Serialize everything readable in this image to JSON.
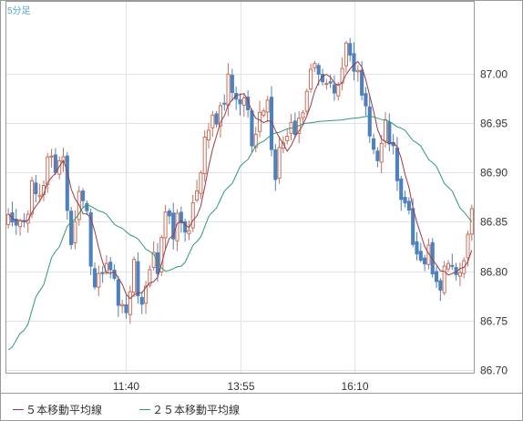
{
  "chart_data": {
    "type": "candlestick",
    "interval_label": "5分足",
    "y_ticks": [
      86.7,
      86.75,
      86.8,
      86.85,
      86.9,
      86.95,
      87.0
    ],
    "ylim": [
      86.697,
      87.073
    ],
    "x_ticks": [
      {
        "index": 30,
        "label": "11:40"
      },
      {
        "index": 59,
        "label": "13:55"
      },
      {
        "index": 88,
        "label": "16:10"
      }
    ],
    "x_count": 119,
    "colors": {
      "up": "#c8705c",
      "down": "#4e81bd",
      "ma5": "#9c3a4a",
      "ma25": "#2e9a73"
    },
    "legend": [
      {
        "label": "５本移動平均線",
        "color": "#9c3a4a"
      },
      {
        "label": "２５本移動平均線",
        "color": "#2e9a73"
      }
    ],
    "anchors": [
      [
        0,
        86.85
      ],
      [
        2,
        86.86
      ],
      [
        4,
        86.85
      ],
      [
        6,
        86.88
      ],
      [
        8,
        86.88
      ],
      [
        10,
        86.92
      ],
      [
        12,
        86.9
      ],
      [
        14,
        86.91
      ],
      [
        16,
        86.84
      ],
      [
        18,
        86.87
      ],
      [
        20,
        86.85
      ],
      [
        22,
        86.78
      ],
      [
        24,
        86.81
      ],
      [
        26,
        86.79
      ],
      [
        28,
        86.77
      ],
      [
        30,
        86.75
      ],
      [
        32,
        86.8
      ],
      [
        34,
        86.77
      ],
      [
        36,
        86.8
      ],
      [
        38,
        86.81
      ],
      [
        40,
        86.86
      ],
      [
        42,
        86.84
      ],
      [
        44,
        86.85
      ],
      [
        46,
        86.84
      ],
      [
        48,
        86.88
      ],
      [
        50,
        86.93
      ],
      [
        52,
        86.95
      ],
      [
        54,
        86.96
      ],
      [
        56,
        86.99
      ],
      [
        58,
        86.97
      ],
      [
        60,
        86.98
      ],
      [
        62,
        86.94
      ],
      [
        64,
        86.95
      ],
      [
        66,
        86.96
      ],
      [
        68,
        86.9
      ],
      [
        70,
        86.93
      ],
      [
        72,
        86.95
      ],
      [
        74,
        86.95
      ],
      [
        76,
        86.98
      ],
      [
        78,
        87.01
      ],
      [
        80,
        86.98
      ],
      [
        82,
        86.99
      ],
      [
        84,
        86.98
      ],
      [
        86,
        87.03
      ],
      [
        88,
        87.0
      ],
      [
        90,
        86.98
      ],
      [
        92,
        86.93
      ],
      [
        94,
        86.92
      ],
      [
        96,
        86.95
      ],
      [
        98,
        86.93
      ],
      [
        100,
        86.88
      ],
      [
        102,
        86.85
      ],
      [
        104,
        86.83
      ],
      [
        106,
        86.82
      ],
      [
        108,
        86.81
      ],
      [
        110,
        86.79
      ],
      [
        112,
        86.8
      ],
      [
        114,
        86.79
      ],
      [
        116,
        86.82
      ],
      [
        118,
        86.85
      ]
    ],
    "ma25_anchors": [
      [
        0,
        86.72
      ],
      [
        4,
        86.74
      ],
      [
        8,
        86.78
      ],
      [
        12,
        86.82
      ],
      [
        16,
        86.85
      ],
      [
        20,
        86.867
      ],
      [
        24,
        86.86
      ],
      [
        28,
        86.845
      ],
      [
        32,
        86.835
      ],
      [
        36,
        86.82
      ],
      [
        40,
        86.8
      ],
      [
        44,
        86.805
      ],
      [
        48,
        86.83
      ],
      [
        52,
        86.86
      ],
      [
        56,
        86.885
      ],
      [
        60,
        86.91
      ],
      [
        64,
        86.93
      ],
      [
        68,
        86.94
      ],
      [
        72,
        86.945
      ],
      [
        76,
        86.95
      ],
      [
        80,
        86.952
      ],
      [
        84,
        86.953
      ],
      [
        88,
        86.955
      ],
      [
        92,
        86.957
      ],
      [
        96,
        86.953
      ],
      [
        100,
        86.945
      ],
      [
        104,
        86.93
      ],
      [
        108,
        86.91
      ],
      [
        112,
        86.885
      ],
      [
        116,
        86.86
      ],
      [
        118,
        86.85
      ]
    ]
  }
}
